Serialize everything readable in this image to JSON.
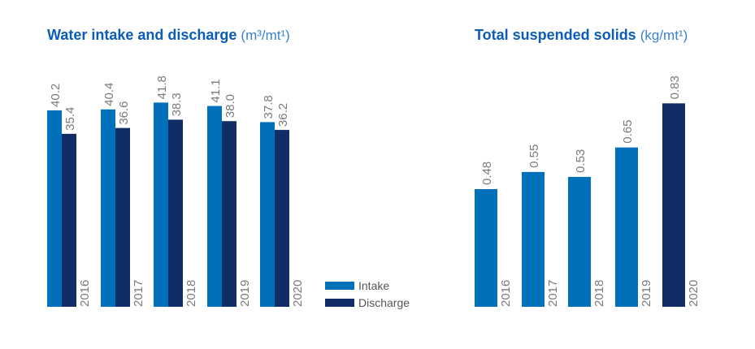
{
  "colors": {
    "intake": "#0070ba",
    "discharge": "#102d66",
    "label": "#7a7a7a"
  },
  "chart_data": [
    {
      "type": "bar",
      "title": "Water intake and discharge",
      "unit": "(m³/mt¹)",
      "categories": [
        "2016",
        "2017",
        "2018",
        "2019",
        "2020"
      ],
      "series": [
        {
          "name": "Intake",
          "values": [
            40.2,
            40.4,
            41.8,
            41.1,
            37.8
          ]
        },
        {
          "name": "Discharge",
          "values": [
            35.4,
            36.6,
            38.3,
            38.0,
            36.2
          ]
        }
      ],
      "value_labels": [
        [
          "40.2",
          "40.4",
          "41.8",
          "41.1",
          "37.8"
        ],
        [
          "35.4",
          "36.6",
          "38.3",
          "38.0",
          "36.2"
        ]
      ],
      "ylim": [
        0,
        45
      ],
      "legend": "bottom-right",
      "grid": false
    },
    {
      "type": "bar",
      "title": "Total suspended solids",
      "unit": "(kg/mt¹)",
      "categories": [
        "2016",
        "2017",
        "2018",
        "2019",
        "2020"
      ],
      "values": [
        0.48,
        0.55,
        0.53,
        0.65,
        0.83
      ],
      "value_labels": [
        "0.48",
        "0.55",
        "0.53",
        "0.65",
        "0.83"
      ],
      "highlight_index": 4,
      "ylim": [
        0,
        0.9
      ],
      "grid": false
    }
  ]
}
